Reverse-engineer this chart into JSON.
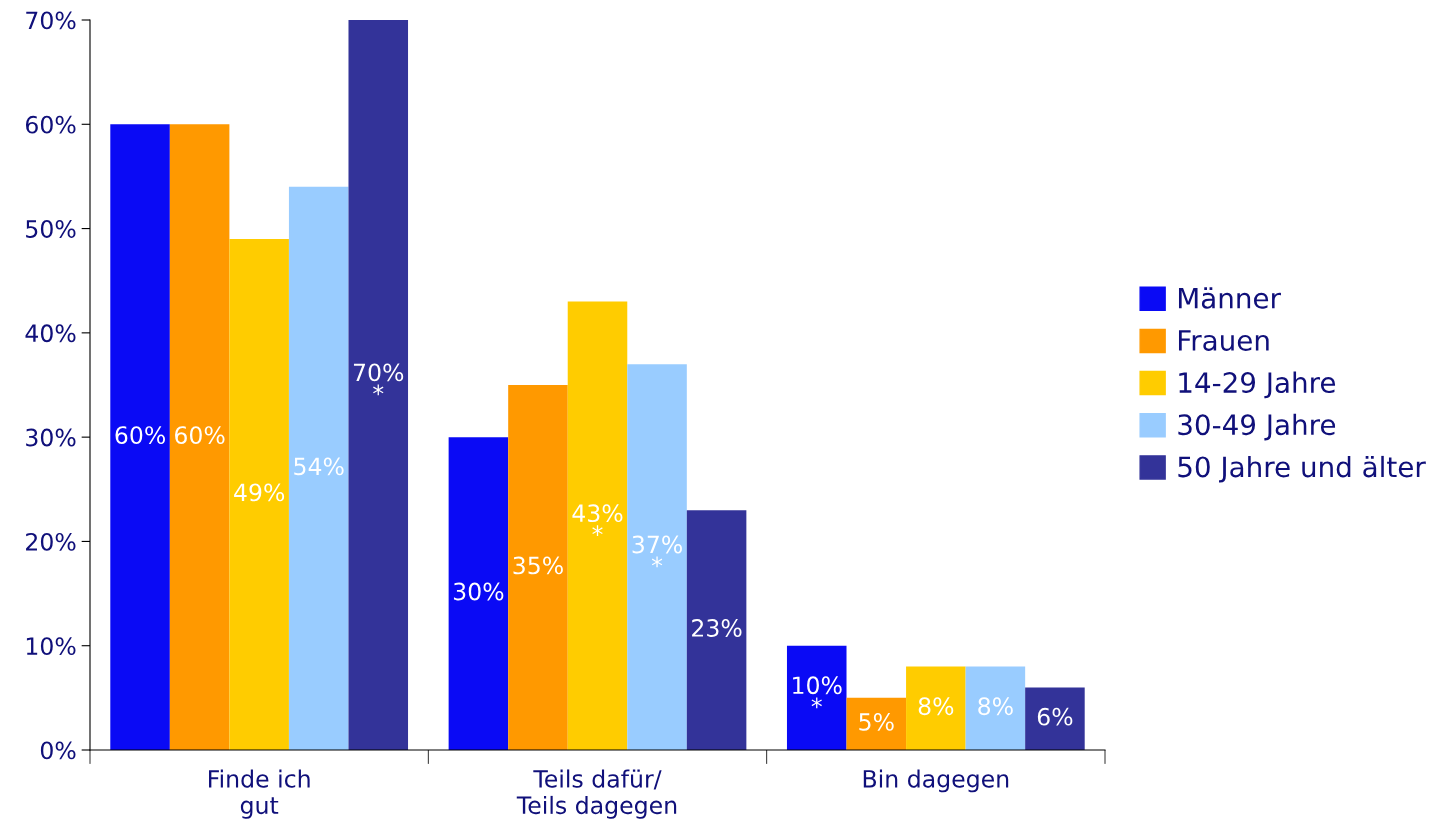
{
  "chart_data": {
    "type": "bar",
    "categories": [
      "Finde ich\ngut",
      "Teils dafür/\nTeils dagegen",
      "Bin dagegen"
    ],
    "series": [
      {
        "name": "Männer",
        "color": "#0a0af5",
        "values": [
          60,
          30,
          10
        ],
        "value_labels": [
          "60%",
          "30%",
          "10%\n*"
        ]
      },
      {
        "name": "Frauen",
        "color": "#ff9900",
        "values": [
          60,
          35,
          5
        ],
        "value_labels": [
          "60%",
          "35%",
          "5%"
        ]
      },
      {
        "name": "14-29 Jahre",
        "color": "#ffcc00",
        "values": [
          49,
          43,
          8
        ],
        "value_labels": [
          "49%",
          "43%\n*",
          "8%"
        ]
      },
      {
        "name": "30-49 Jahre",
        "color": "#99ccff",
        "values": [
          54,
          37,
          8
        ],
        "value_labels": [
          "54%",
          "37%\n*",
          "8%"
        ]
      },
      {
        "name": "50 Jahre und älter",
        "color": "#333399",
        "values": [
          70,
          23,
          6
        ],
        "value_labels": [
          "70%\n*",
          "23%",
          "6%"
        ]
      }
    ],
    "ylim": [
      0,
      70
    ],
    "yticks": [
      {
        "value": 0,
        "label": "0%"
      },
      {
        "value": 10,
        "label": "10%"
      },
      {
        "value": 20,
        "label": "20%"
      },
      {
        "value": 30,
        "label": "30%"
      },
      {
        "value": 40,
        "label": "40%"
      },
      {
        "value": 50,
        "label": "50%"
      },
      {
        "value": 60,
        "label": "60%"
      },
      {
        "value": 70,
        "label": "70%"
      }
    ],
    "grid": false,
    "legend": "right"
  }
}
